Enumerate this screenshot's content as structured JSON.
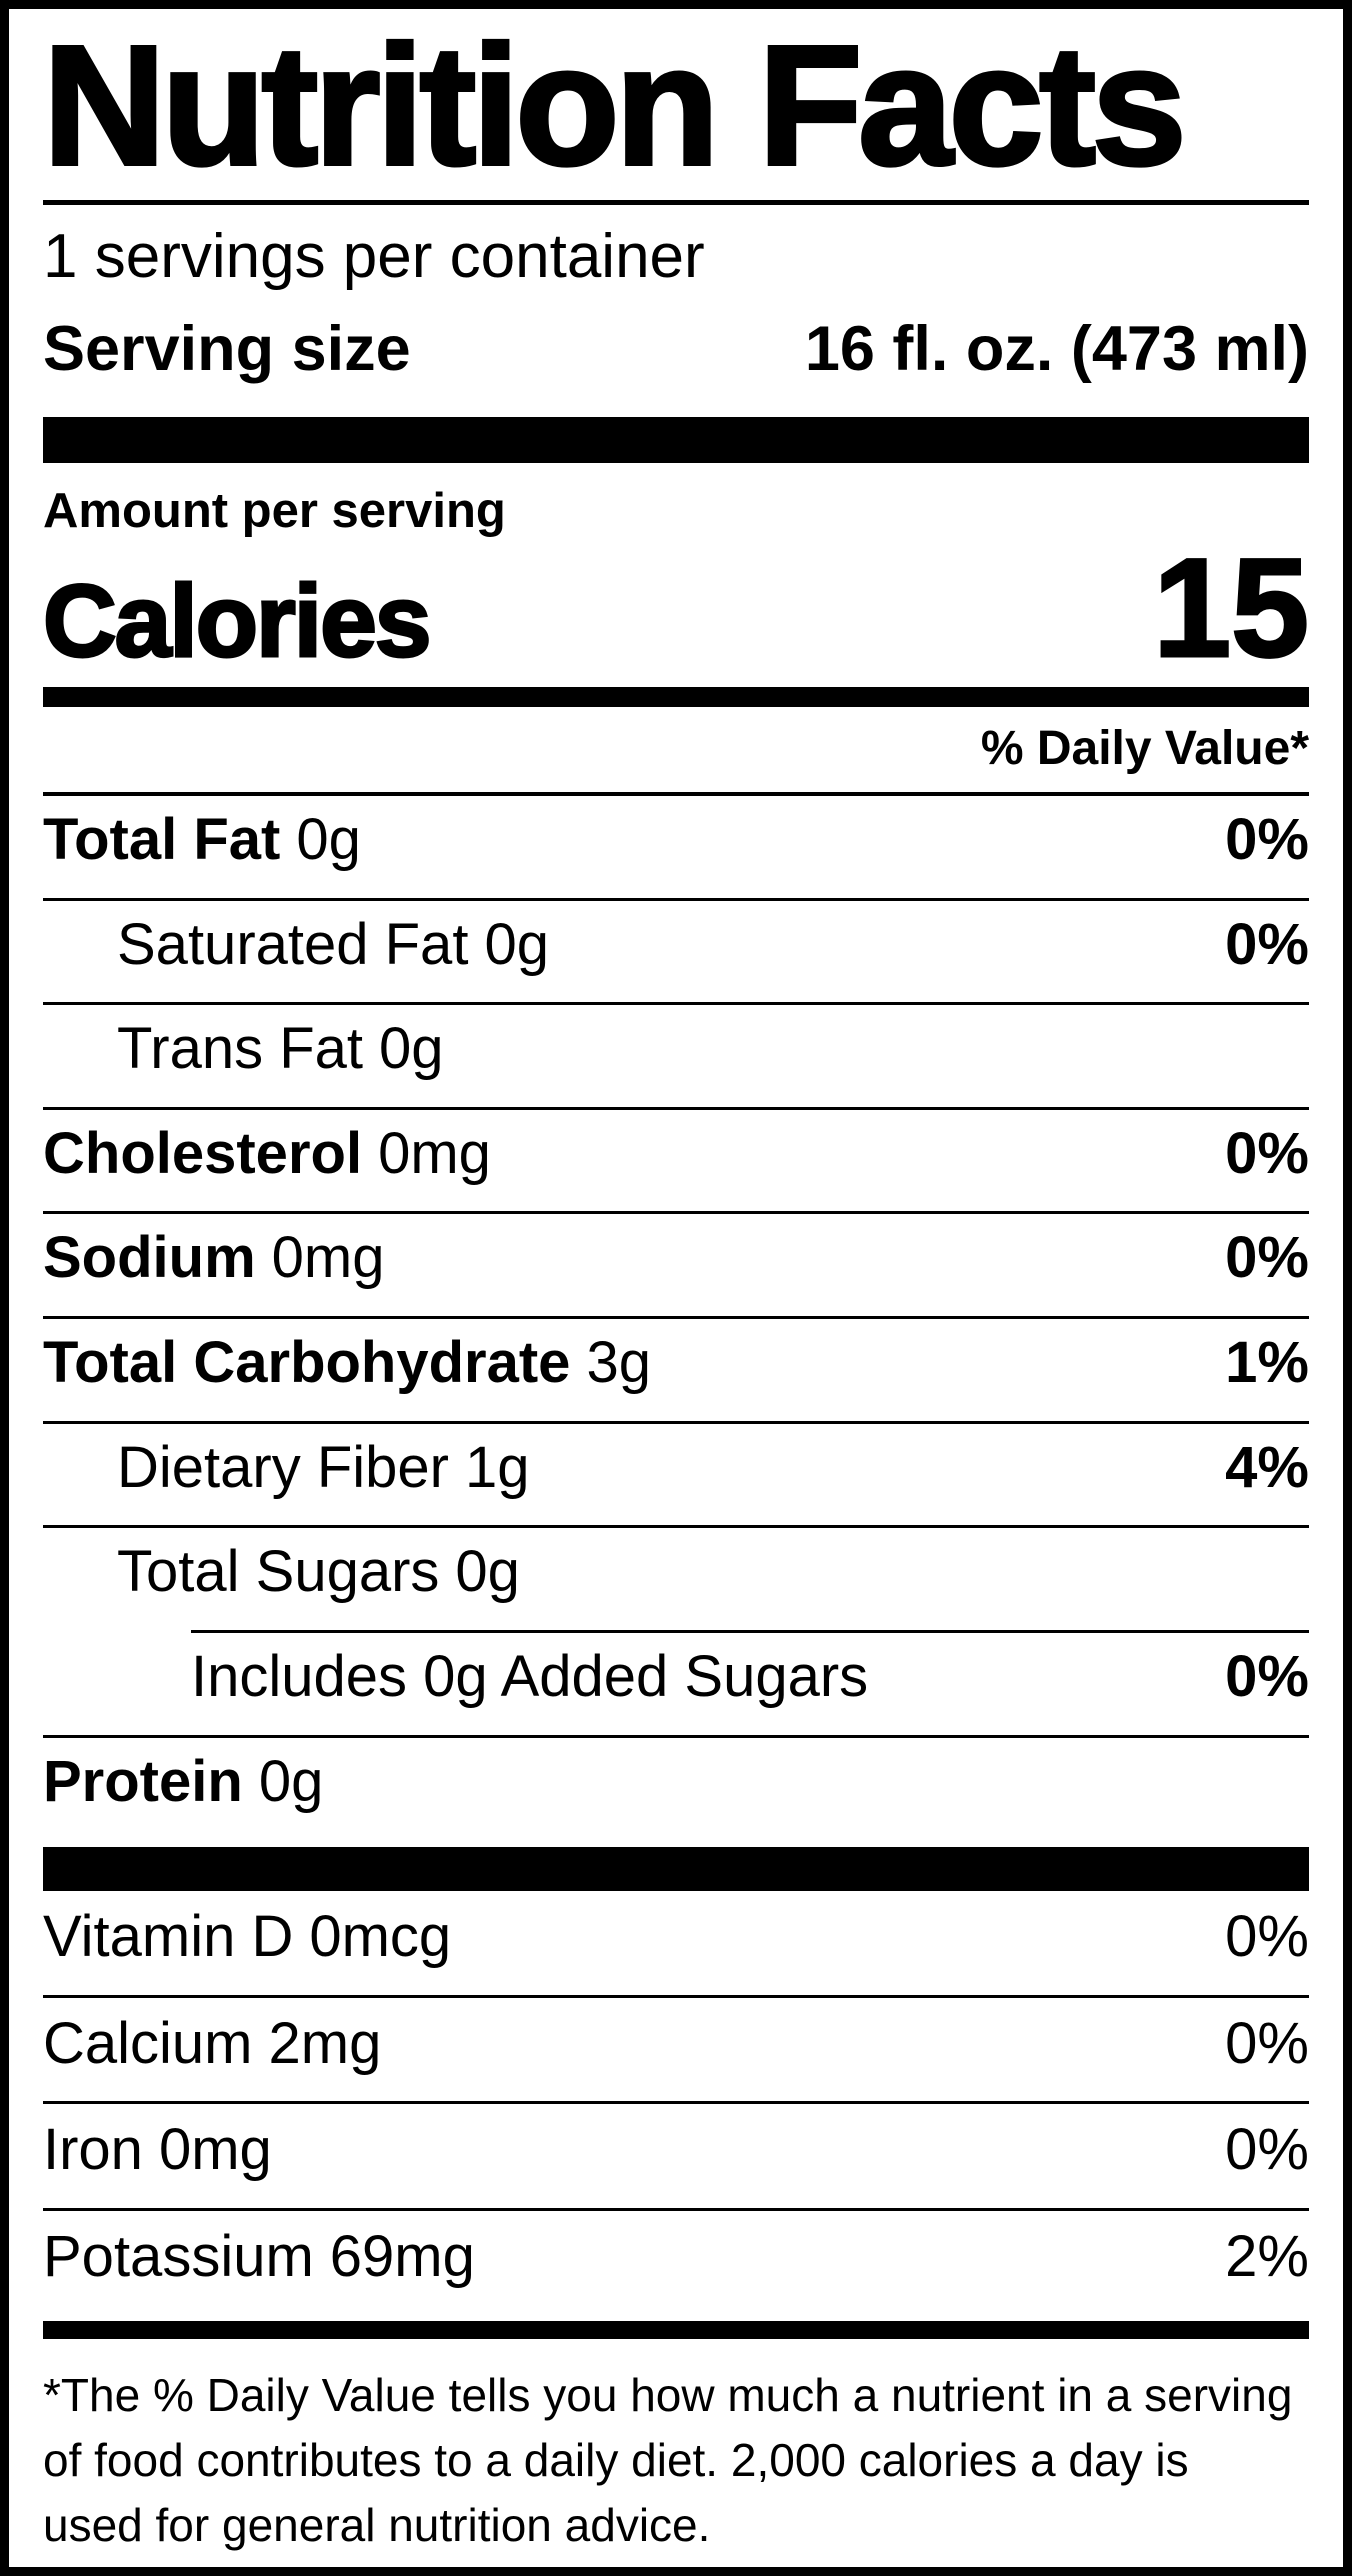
{
  "colors": {
    "text": "#000000",
    "background": "#ffffff"
  },
  "header": {
    "title": "Nutrition Facts",
    "servings_per_container": "1 servings per container",
    "serving_size_label": "Serving size",
    "serving_size_value": "16 fl. oz. (473 ml)"
  },
  "calories": {
    "amount_per_serving_label": "Amount per serving",
    "label": "Calories",
    "value": "15"
  },
  "daily_value_header": "% Daily Value*",
  "rows": [
    {
      "name": "Total Fat",
      "amount": "0g",
      "percent": "0%"
    },
    {
      "name": "Saturated Fat",
      "amount": "0g",
      "percent": "0%"
    },
    {
      "name": "Trans Fat",
      "amount": "0g",
      "percent": ""
    },
    {
      "name": "Cholesterol",
      "amount": "0mg",
      "percent": "0%"
    },
    {
      "name": "Sodium",
      "amount": "0mg",
      "percent": "0%"
    },
    {
      "name": "Total Carbohydrate",
      "amount": "3g",
      "percent": "1%"
    },
    {
      "name": "Dietary Fiber",
      "amount": "1g",
      "percent": "4%"
    },
    {
      "name": "Total Sugars",
      "amount": "0g",
      "percent": ""
    },
    {
      "name": "Includes 0g Added Sugars",
      "amount": "",
      "percent": "0%"
    },
    {
      "name": "Protein",
      "amount": "0g",
      "percent": ""
    }
  ],
  "vitamins": [
    {
      "name": "Vitamin D",
      "amount": "0mcg",
      "percent": "0%"
    },
    {
      "name": "Calcium",
      "amount": "2mg",
      "percent": "0%"
    },
    {
      "name": "Iron",
      "amount": "0mg",
      "percent": "0%"
    },
    {
      "name": "Potassium",
      "amount": "69mg",
      "percent": "2%"
    }
  ],
  "footnote": "*The % Daily Value tells you how much a nutrient in a serving of food contributes to a daily diet. 2,000 calories a day is used for general nutrition advice."
}
